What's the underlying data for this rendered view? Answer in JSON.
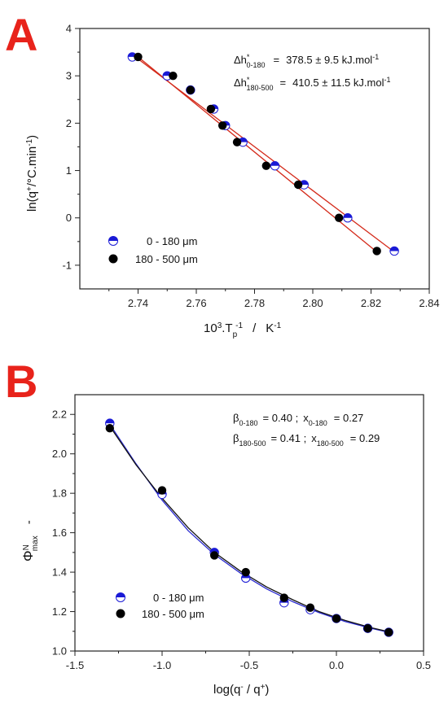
{
  "colors": {
    "panel_letter": "#e8231b",
    "blue_series": "#1a1ad6",
    "black_series": "#000000",
    "fit_line_A": "#d42a1a",
    "fit_line_B_blue": "#2a2ad0",
    "fit_line_B_black": "#111111"
  },
  "chart_data": [
    {
      "panel": "A",
      "type": "scatter",
      "xlabel_parts": {
        "base": "10",
        "sup1": "3",
        "mid": ".T",
        "sub": "p",
        "sup2": "-1",
        "unit": "K",
        "unit_sup": "-1"
      },
      "ylabel_parts": {
        "pre": "ln(q",
        "sup": "+",
        "post": "/°C.min",
        "sup2": "-1",
        "close": ")"
      },
      "xlim": [
        2.72,
        2.84
      ],
      "ylim": [
        -1.5,
        4
      ],
      "xticks": [
        "2.74",
        "2.76",
        "2.78",
        "2.80",
        "2.82",
        "2.84"
      ],
      "yticks": [
        "-1",
        "0",
        "1",
        "2",
        "3",
        "4"
      ],
      "xtick_values": [
        2.74,
        2.76,
        2.78,
        2.8,
        2.82,
        2.84
      ],
      "ytick_values": [
        -1,
        0,
        1,
        2,
        3,
        4
      ],
      "annotations": [
        {
          "pre": "Δh",
          "sup": "*",
          "sub": "0-180",
          "eq": "=",
          "value": "378.5 ± 9.5 kJ.mol",
          "exp": "-1"
        },
        {
          "pre": "Δh",
          "sup": "*",
          "sub": "180-500",
          "eq": "=",
          "value": "410.5 ± 11.5 kJ.mol",
          "exp": "-1"
        }
      ],
      "series": [
        {
          "name": "0 - 180 μm",
          "marker": "half-blue",
          "x": [
            2.738,
            2.75,
            2.758,
            2.766,
            2.77,
            2.776,
            2.787,
            2.797,
            2.812,
            2.828
          ],
          "y": [
            3.4,
            3.0,
            2.7,
            2.3,
            1.95,
            1.6,
            1.1,
            0.7,
            0.0,
            -0.7
          ]
        },
        {
          "name": "180 - 500 μm",
          "marker": "black",
          "x": [
            2.74,
            2.752,
            2.758,
            2.765,
            2.769,
            2.774,
            2.784,
            2.795,
            2.809,
            2.822
          ],
          "y": [
            3.4,
            3.0,
            2.7,
            2.3,
            1.95,
            1.6,
            1.1,
            0.7,
            0.0,
            -0.7
          ]
        }
      ],
      "fits": [
        {
          "x": [
            2.738,
            2.828
          ],
          "y": [
            3.45,
            -0.72
          ]
        },
        {
          "x": [
            2.74,
            2.822
          ],
          "y": [
            3.4,
            -0.72
          ]
        }
      ]
    },
    {
      "panel": "B",
      "type": "scatter",
      "xlabel_parts": {
        "pre": "log(q",
        "sup1": "-",
        "mid": " / q",
        "sup2": "+",
        "close": ")"
      },
      "ylabel_parts": {
        "main": "Φ",
        "sup": "N",
        "sub": "max",
        "unit": "-"
      },
      "xlim": [
        -1.5,
        0.5
      ],
      "ylim": [
        1.0,
        2.3
      ],
      "xticks": [
        "-1.5",
        "-1.0",
        "-0.5",
        "0.0",
        "0.5"
      ],
      "yticks": [
        "1.0",
        "1.2",
        "1.4",
        "1.6",
        "1.8",
        "2.0",
        "2.2"
      ],
      "xtick_values": [
        -1.5,
        -1.0,
        -0.5,
        0.0,
        0.5
      ],
      "ytick_values": [
        1.0,
        1.2,
        1.4,
        1.6,
        1.8,
        2.0,
        2.2
      ],
      "annotations": [
        {
          "b": "β",
          "bsub": "0-180",
          "bval": "=  0.40  ;",
          "x": "x",
          "xsub": "0-180",
          "xval": "=  0.27"
        },
        {
          "b": "β",
          "bsub": "180-500",
          "bval": "=  0.41  ;",
          "x": "x",
          "xsub": "180-500",
          "xval": "=  0.29"
        }
      ],
      "series": [
        {
          "name": "0 - 180 μm",
          "marker": "half-blue",
          "x": [
            -1.3,
            -1.0,
            -0.7,
            -0.52,
            -0.3,
            -0.15,
            0.0,
            0.18,
            0.3
          ],
          "y": [
            2.155,
            1.795,
            1.5,
            1.37,
            1.245,
            1.21,
            1.165,
            1.115,
            1.095
          ]
        },
        {
          "name": "180 - 500 μm",
          "marker": "black",
          "x": [
            -1.3,
            -1.0,
            -0.7,
            -0.52,
            -0.3,
            -0.15,
            0.0,
            0.18,
            0.3
          ],
          "y": [
            2.13,
            1.815,
            1.485,
            1.4,
            1.27,
            1.22,
            1.165,
            1.115,
            1.095
          ]
        }
      ],
      "fits": [
        {
          "color": "blue",
          "x": [
            -1.3,
            -1.15,
            -1.0,
            -0.85,
            -0.7,
            -0.55,
            -0.4,
            -0.25,
            -0.1,
            0.05,
            0.2,
            0.3
          ],
          "y": [
            2.15,
            1.95,
            1.765,
            1.61,
            1.49,
            1.395,
            1.315,
            1.25,
            1.195,
            1.15,
            1.115,
            1.095
          ]
        },
        {
          "color": "black",
          "x": [
            -1.3,
            -1.15,
            -1.0,
            -0.85,
            -0.7,
            -0.55,
            -0.4,
            -0.25,
            -0.1,
            0.05,
            0.2,
            0.3
          ],
          "y": [
            2.14,
            1.945,
            1.775,
            1.625,
            1.5,
            1.405,
            1.325,
            1.26,
            1.2,
            1.155,
            1.118,
            1.098
          ]
        }
      ]
    }
  ],
  "legends": [
    {
      "items": [
        "0 - 180 μm",
        "180 - 500 μm"
      ]
    },
    {
      "items": [
        "0 - 180 μm",
        "180 - 500 μm"
      ]
    }
  ],
  "panels": [
    "A",
    "B"
  ]
}
